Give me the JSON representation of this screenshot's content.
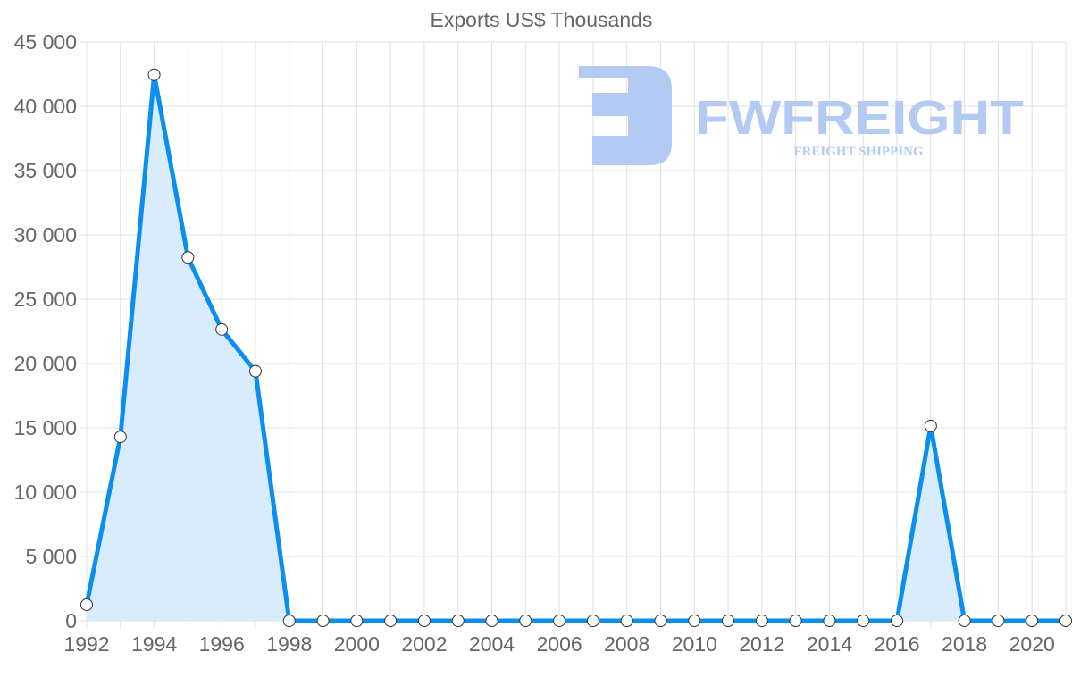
{
  "chart_data": {
    "type": "area",
    "title": "Exports US$ Thousands",
    "xlabel": "",
    "ylabel": "",
    "x": [
      1992,
      1993,
      1994,
      1995,
      1996,
      1997,
      1998,
      1999,
      2000,
      2001,
      2002,
      2003,
      2004,
      2005,
      2006,
      2007,
      2008,
      2009,
      2010,
      2011,
      2012,
      2013,
      2014,
      2015,
      2016,
      2017,
      2018,
      2019,
      2020,
      2021
    ],
    "values": [
      1250,
      14300,
      42450,
      28250,
      22650,
      19400,
      0,
      0,
      0,
      0,
      0,
      0,
      0,
      0,
      0,
      0,
      0,
      0,
      0,
      0,
      0,
      0,
      0,
      0,
      0,
      15150,
      0,
      0,
      0,
      0
    ],
    "ylim": [
      0,
      45000
    ],
    "xlim": [
      1992,
      2021
    ],
    "y_ticks": [
      0,
      5000,
      10000,
      15000,
      20000,
      25000,
      30000,
      35000,
      40000,
      45000
    ],
    "y_tick_labels": [
      "0",
      "5 000",
      "10 000",
      "15 000",
      "20 000",
      "25 000",
      "30 000",
      "35 000",
      "40 000",
      "45 000"
    ],
    "x_tick_labels": [
      "1992",
      "1994",
      "1996",
      "1998",
      "2000",
      "2002",
      "2004",
      "2006",
      "2008",
      "2010",
      "2012",
      "2014",
      "2016",
      "2018",
      "2020"
    ],
    "grid": true,
    "colors": {
      "line": "#0a8ef0",
      "fill": "#d9ecfd",
      "grid": "#e0e0e0",
      "text": "#666666"
    }
  },
  "watermark": {
    "brand": "FWFREIGHT",
    "tagline": "FREIGHT SHIPPING",
    "color": "#b3cbf2"
  }
}
